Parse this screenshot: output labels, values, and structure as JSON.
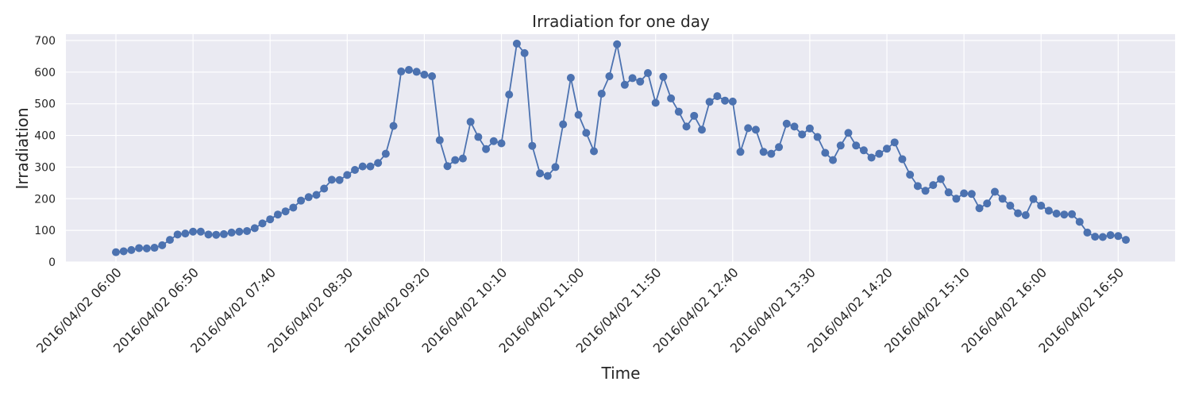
{
  "chart_data": {
    "type": "line",
    "title": "Irradiation for one day",
    "xlabel": "Time",
    "ylabel": "Irradiation",
    "ylim": [
      0,
      720
    ],
    "grid": true,
    "background": "#eaeaf2",
    "line_color": "#4c72b0",
    "x_start": "2016/04/02 06:00",
    "x_end": "2016/04/02 16:50",
    "x_ticks": [
      "2016/04/02 06:00",
      "2016/04/02 06:50",
      "2016/04/02 07:40",
      "2016/04/02 08:30",
      "2016/04/02 09:20",
      "2016/04/02 10:10",
      "2016/04/02 11:00",
      "2016/04/02 11:50",
      "2016/04/02 12:40",
      "2016/04/02 13:30",
      "2016/04/02 14:20",
      "2016/04/02 15:10",
      "2016/04/02 16:00",
      "2016/04/02 16:50"
    ],
    "y_ticks": [
      0,
      100,
      200,
      300,
      400,
      500,
      600,
      700
    ],
    "series": [
      {
        "values": [
          31,
          34,
          38,
          44,
          43,
          45,
          53,
          70,
          87,
          90,
          96,
          96,
          87,
          86,
          88,
          93,
          96,
          98,
          107,
          122,
          135,
          150,
          160,
          172,
          194,
          205,
          212,
          232,
          260,
          259,
          275,
          291,
          302,
          302,
          313,
          342,
          430,
          602,
          607,
          601,
          592,
          587,
          385,
          303,
          322,
          327,
          443,
          395,
          357,
          382,
          375,
          529,
          690,
          660,
          367,
          280,
          272,
          300,
          435,
          582,
          465,
          408,
          350,
          532,
          587,
          688,
          560,
          581,
          570,
          597,
          503,
          585,
          517,
          475,
          428,
          462,
          418,
          506,
          524,
          510,
          507,
          348,
          423,
          418,
          348,
          342,
          363,
          437,
          428,
          403,
          422,
          395,
          345,
          322,
          368,
          408,
          368,
          353,
          330,
          342,
          358,
          378,
          325,
          276,
          240,
          225,
          243,
          262,
          220,
          200,
          217,
          215,
          170,
          185,
          222,
          200,
          178,
          154,
          148,
          199,
          178,
          162,
          153,
          150,
          151,
          127,
          93,
          80,
          79,
          85,
          82,
          70
        ]
      }
    ]
  }
}
